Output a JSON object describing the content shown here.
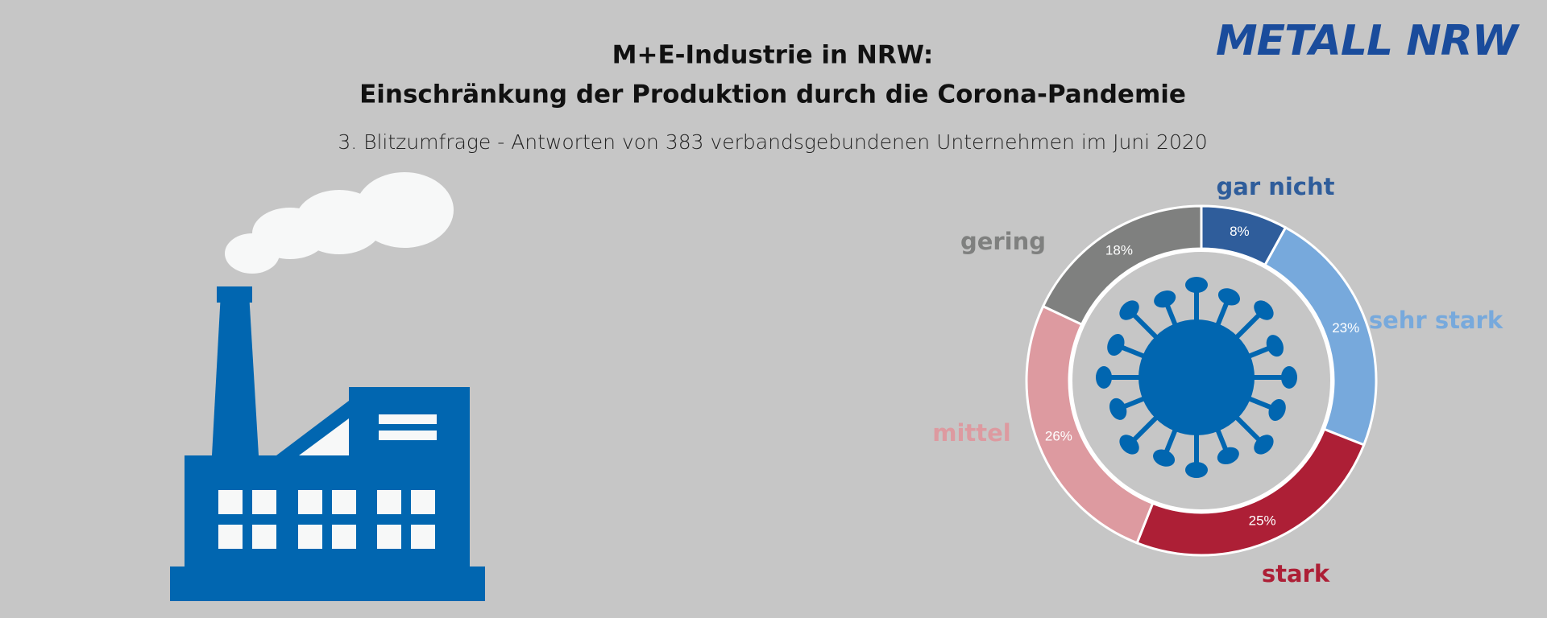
{
  "logo": "METALL NRW",
  "chart_data": {
    "type": "pie",
    "title": [
      "M+E-Industrie in NRW:",
      "Einschränkung der Produktion durch die Corona-Pandemie"
    ],
    "subtitle": "3. Blitzumfrage - Antworten von 383 verbandsgebundenen Unternehmen im Juni 2020",
    "categories": [
      "gar nicht",
      "sehr stark",
      "stark",
      "mittel",
      "gering"
    ],
    "values": [
      8,
      23,
      25,
      26,
      18
    ],
    "value_labels": [
      "8%",
      "23%",
      "25%",
      "26%",
      "18%"
    ],
    "colors": [
      "#2f5d9b",
      "#77a9dc",
      "#ad1f36",
      "#dd9aa0",
      "#7f807f"
    ]
  }
}
